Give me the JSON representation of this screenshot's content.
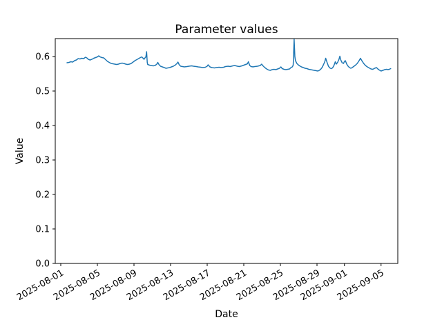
{
  "chart_data": {
    "type": "line",
    "title": "Parameter values",
    "xlabel": "Date",
    "ylabel": "Value",
    "line_color": "#1f77b4",
    "line_width": 1.5,
    "background_color": "#ffffff",
    "grid": false,
    "legend": null,
    "x_unit": "days since 2025-08-01",
    "xlim_days": [
      -0.604,
      36.83
    ],
    "ylim": [
      0.0,
      0.652
    ],
    "x_ticks": [
      {
        "label": "2025-08-01",
        "day": 0
      },
      {
        "label": "2025-08-05",
        "day": 4
      },
      {
        "label": "2025-08-09",
        "day": 8
      },
      {
        "label": "2025-08-13",
        "day": 12
      },
      {
        "label": "2025-08-17",
        "day": 16
      },
      {
        "label": "2025-08-21",
        "day": 20
      },
      {
        "label": "2025-08-25",
        "day": 24
      },
      {
        "label": "2025-08-29",
        "day": 28
      },
      {
        "label": "2025-09-01",
        "day": 31
      },
      {
        "label": "2025-09-05",
        "day": 35
      }
    ],
    "y_ticks": [
      {
        "label": "0.0",
        "value": 0.0
      },
      {
        "label": "0.1",
        "value": 0.1
      },
      {
        "label": "0.2",
        "value": 0.2
      },
      {
        "label": "0.3",
        "value": 0.3
      },
      {
        "label": "0.4",
        "value": 0.4
      },
      {
        "label": "0.5",
        "value": 0.5
      },
      {
        "label": "0.6",
        "value": 0.6
      }
    ],
    "points": [
      [
        0.68,
        0.582
      ],
      [
        0.9,
        0.583
      ],
      [
        1.1,
        0.585
      ],
      [
        1.3,
        0.584
      ],
      [
        1.5,
        0.588
      ],
      [
        1.7,
        0.59
      ],
      [
        1.9,
        0.594
      ],
      [
        2.1,
        0.593
      ],
      [
        2.3,
        0.595
      ],
      [
        2.5,
        0.594
      ],
      [
        2.7,
        0.598
      ],
      [
        2.85,
        0.596
      ],
      [
        3.0,
        0.592
      ],
      [
        3.2,
        0.59
      ],
      [
        3.4,
        0.592
      ],
      [
        3.6,
        0.595
      ],
      [
        3.8,
        0.597
      ],
      [
        4.0,
        0.599
      ],
      [
        4.15,
        0.602
      ],
      [
        4.3,
        0.599
      ],
      [
        4.5,
        0.597
      ],
      [
        4.7,
        0.596
      ],
      [
        4.9,
        0.591
      ],
      [
        5.1,
        0.586
      ],
      [
        5.3,
        0.583
      ],
      [
        5.5,
        0.58
      ],
      [
        5.7,
        0.579
      ],
      [
        5.9,
        0.578
      ],
      [
        6.1,
        0.577
      ],
      [
        6.3,
        0.578
      ],
      [
        6.5,
        0.58
      ],
      [
        6.7,
        0.581
      ],
      [
        6.9,
        0.58
      ],
      [
        7.1,
        0.578
      ],
      [
        7.3,
        0.577
      ],
      [
        7.5,
        0.578
      ],
      [
        7.7,
        0.58
      ],
      [
        7.9,
        0.584
      ],
      [
        8.1,
        0.588
      ],
      [
        8.3,
        0.591
      ],
      [
        8.5,
        0.594
      ],
      [
        8.7,
        0.597
      ],
      [
        8.85,
        0.599
      ],
      [
        9.0,
        0.595
      ],
      [
        9.1,
        0.592
      ],
      [
        9.2,
        0.596
      ],
      [
        9.3,
        0.599
      ],
      [
        9.38,
        0.614
      ],
      [
        9.45,
        0.583
      ],
      [
        9.5,
        0.577
      ],
      [
        9.7,
        0.575
      ],
      [
        9.9,
        0.574
      ],
      [
        10.1,
        0.573
      ],
      [
        10.3,
        0.574
      ],
      [
        10.5,
        0.578
      ],
      [
        10.6,
        0.583
      ],
      [
        10.75,
        0.576
      ],
      [
        10.9,
        0.572
      ],
      [
        11.1,
        0.57
      ],
      [
        11.3,
        0.568
      ],
      [
        11.5,
        0.566
      ],
      [
        11.7,
        0.567
      ],
      [
        11.9,
        0.568
      ],
      [
        12.1,
        0.57
      ],
      [
        12.3,
        0.572
      ],
      [
        12.5,
        0.575
      ],
      [
        12.7,
        0.58
      ],
      [
        12.8,
        0.584
      ],
      [
        12.95,
        0.576
      ],
      [
        13.1,
        0.572
      ],
      [
        13.3,
        0.571
      ],
      [
        13.5,
        0.57
      ],
      [
        13.8,
        0.571
      ],
      [
        14.0,
        0.572
      ],
      [
        14.3,
        0.573
      ],
      [
        14.5,
        0.572
      ],
      [
        14.8,
        0.571
      ],
      [
        15.0,
        0.57
      ],
      [
        15.3,
        0.569
      ],
      [
        15.5,
        0.568
      ],
      [
        15.8,
        0.569
      ],
      [
        16.0,
        0.572
      ],
      [
        16.1,
        0.576
      ],
      [
        16.3,
        0.57
      ],
      [
        16.5,
        0.568
      ],
      [
        16.8,
        0.567
      ],
      [
        17.0,
        0.568
      ],
      [
        17.3,
        0.569
      ],
      [
        17.5,
        0.568
      ],
      [
        17.8,
        0.569
      ],
      [
        18.0,
        0.571
      ],
      [
        18.3,
        0.572
      ],
      [
        18.5,
        0.571
      ],
      [
        18.8,
        0.573
      ],
      [
        19.0,
        0.574
      ],
      [
        19.3,
        0.572
      ],
      [
        19.5,
        0.571
      ],
      [
        19.8,
        0.573
      ],
      [
        20.0,
        0.575
      ],
      [
        20.2,
        0.577
      ],
      [
        20.4,
        0.579
      ],
      [
        20.5,
        0.585
      ],
      [
        20.65,
        0.574
      ],
      [
        20.8,
        0.571
      ],
      [
        21.0,
        0.57
      ],
      [
        21.2,
        0.571
      ],
      [
        21.5,
        0.572
      ],
      [
        21.8,
        0.574
      ],
      [
        21.95,
        0.578
      ],
      [
        22.1,
        0.573
      ],
      [
        22.3,
        0.568
      ],
      [
        22.5,
        0.564
      ],
      [
        22.7,
        0.561
      ],
      [
        22.9,
        0.56
      ],
      [
        23.1,
        0.562
      ],
      [
        23.3,
        0.563
      ],
      [
        23.5,
        0.562
      ],
      [
        23.7,
        0.564
      ],
      [
        23.9,
        0.566
      ],
      [
        24.05,
        0.57
      ],
      [
        24.2,
        0.565
      ],
      [
        24.4,
        0.563
      ],
      [
        24.6,
        0.562
      ],
      [
        24.8,
        0.563
      ],
      [
        25.0,
        0.564
      ],
      [
        25.15,
        0.568
      ],
      [
        25.3,
        0.57
      ],
      [
        25.4,
        0.575
      ],
      [
        25.5,
        0.65
      ],
      [
        25.58,
        0.6
      ],
      [
        25.65,
        0.588
      ],
      [
        25.8,
        0.58
      ],
      [
        25.95,
        0.576
      ],
      [
        26.1,
        0.573
      ],
      [
        26.3,
        0.57
      ],
      [
        26.5,
        0.568
      ],
      [
        26.7,
        0.566
      ],
      [
        26.9,
        0.565
      ],
      [
        27.1,
        0.563
      ],
      [
        27.3,
        0.562
      ],
      [
        27.5,
        0.561
      ],
      [
        27.7,
        0.56
      ],
      [
        27.9,
        0.559
      ],
      [
        28.1,
        0.558
      ],
      [
        28.25,
        0.56
      ],
      [
        28.4,
        0.563
      ],
      [
        28.55,
        0.568
      ],
      [
        28.7,
        0.576
      ],
      [
        28.85,
        0.585
      ],
      [
        28.95,
        0.595
      ],
      [
        29.1,
        0.583
      ],
      [
        29.25,
        0.572
      ],
      [
        29.4,
        0.567
      ],
      [
        29.55,
        0.565
      ],
      [
        29.7,
        0.567
      ],
      [
        29.85,
        0.574
      ],
      [
        30.0,
        0.585
      ],
      [
        30.1,
        0.578
      ],
      [
        30.25,
        0.583
      ],
      [
        30.4,
        0.592
      ],
      [
        30.5,
        0.601
      ],
      [
        30.6,
        0.59
      ],
      [
        30.75,
        0.582
      ],
      [
        30.9,
        0.58
      ],
      [
        31.0,
        0.586
      ],
      [
        31.1,
        0.588
      ],
      [
        31.25,
        0.578
      ],
      [
        31.4,
        0.572
      ],
      [
        31.55,
        0.568
      ],
      [
        31.7,
        0.566
      ],
      [
        31.85,
        0.568
      ],
      [
        32.0,
        0.571
      ],
      [
        32.2,
        0.575
      ],
      [
        32.4,
        0.58
      ],
      [
        32.6,
        0.588
      ],
      [
        32.75,
        0.595
      ],
      [
        32.9,
        0.588
      ],
      [
        33.1,
        0.58
      ],
      [
        33.3,
        0.574
      ],
      [
        33.5,
        0.57
      ],
      [
        33.7,
        0.567
      ],
      [
        33.9,
        0.564
      ],
      [
        34.1,
        0.563
      ],
      [
        34.3,
        0.566
      ],
      [
        34.5,
        0.568
      ],
      [
        34.65,
        0.564
      ],
      [
        34.8,
        0.561
      ],
      [
        35.0,
        0.558
      ],
      [
        35.2,
        0.56
      ],
      [
        35.4,
        0.562
      ],
      [
        35.6,
        0.563
      ],
      [
        35.75,
        0.562
      ],
      [
        35.9,
        0.563
      ],
      [
        36.05,
        0.565
      ]
    ]
  }
}
